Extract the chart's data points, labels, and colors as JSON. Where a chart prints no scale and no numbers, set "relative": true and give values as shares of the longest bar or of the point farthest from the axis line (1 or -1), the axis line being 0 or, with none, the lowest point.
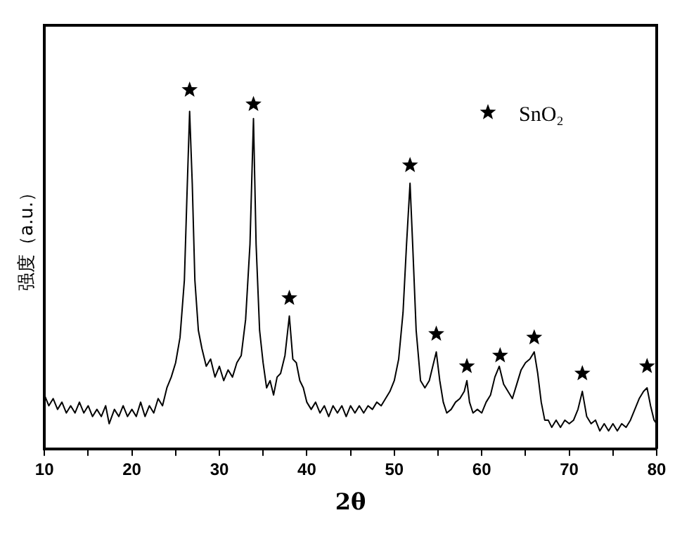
{
  "chart_data": {
    "type": "line",
    "relative": true,
    "xlabel": "2θ",
    "ylabel": "强度（a.u.）",
    "xlim": [
      10,
      80
    ],
    "xticks": [
      10,
      {
        "value": 15,
        "label": null
      },
      20,
      {
        "value": 25,
        "label": null
      },
      30,
      {
        "value": 35,
        "label": null
      },
      40,
      {
        "value": 45,
        "label": null
      },
      50,
      {
        "value": 55,
        "label": null
      },
      60,
      {
        "value": 65,
        "label": null
      },
      70,
      {
        "value": 75,
        "label": null
      },
      80
    ],
    "tick_labels": "x",
    "grid": false,
    "legend": "top right",
    "marker": "none",
    "line_style": "solid",
    "series": [
      {
        "color": "#000000",
        "x": [
          10,
          10.5,
          11,
          11.5,
          12,
          12.5,
          13,
          13.5,
          14,
          14.5,
          15,
          15.5,
          16,
          16.5,
          17,
          17.4,
          18,
          18.5,
          19,
          19.5,
          20,
          20.5,
          21,
          21.5,
          22,
          22.5,
          23,
          23.5,
          24,
          24.5,
          25,
          25.5,
          26,
          26.3,
          26.6,
          26.9,
          27.2,
          27.6,
          28,
          28.5,
          29,
          29.5,
          30,
          30.5,
          31,
          31.5,
          32,
          32.5,
          33,
          33.5,
          33.9,
          34.2,
          34.6,
          35,
          35.4,
          35.8,
          36.2,
          36.6,
          37,
          37.5,
          38,
          38.4,
          38.8,
          39.2,
          39.6,
          40,
          40.5,
          41,
          41.5,
          42,
          42.5,
          43,
          43.5,
          44,
          44.5,
          45,
          45.5,
          46,
          46.5,
          47,
          47.5,
          48,
          48.5,
          49,
          49.5,
          50,
          50.5,
          51,
          51.4,
          51.8,
          52.1,
          52.5,
          53,
          53.5,
          54,
          54.4,
          54.8,
          55.2,
          55.6,
          56,
          56.5,
          57,
          57.5,
          58,
          58.3,
          58.6,
          59,
          59.5,
          60,
          60.5,
          61,
          61.5,
          62,
          62.5,
          63,
          63.5,
          64,
          64.5,
          65,
          65.5,
          66,
          66.4,
          66.8,
          67.2,
          67.6,
          68,
          68.5,
          69,
          69.5,
          70,
          70.5,
          71,
          71.5,
          72,
          72.5,
          73,
          73.5,
          74,
          74.5,
          75,
          75.5,
          76,
          76.5,
          77,
          77.5,
          78,
          78.5,
          78.9,
          79.3,
          79.7,
          80
        ],
        "values": [
          0.15,
          0.12,
          0.14,
          0.11,
          0.13,
          0.1,
          0.12,
          0.1,
          0.13,
          0.1,
          0.12,
          0.09,
          0.11,
          0.09,
          0.12,
          0.07,
          0.11,
          0.09,
          0.12,
          0.09,
          0.11,
          0.09,
          0.13,
          0.09,
          0.12,
          0.1,
          0.14,
          0.12,
          0.17,
          0.2,
          0.24,
          0.31,
          0.47,
          0.71,
          0.94,
          0.74,
          0.47,
          0.33,
          0.28,
          0.23,
          0.25,
          0.2,
          0.23,
          0.19,
          0.22,
          0.2,
          0.24,
          0.26,
          0.36,
          0.57,
          0.92,
          0.57,
          0.33,
          0.24,
          0.17,
          0.19,
          0.15,
          0.2,
          0.21,
          0.26,
          0.37,
          0.25,
          0.24,
          0.19,
          0.17,
          0.13,
          0.11,
          0.13,
          0.1,
          0.12,
          0.09,
          0.12,
          0.1,
          0.12,
          0.09,
          0.12,
          0.1,
          0.12,
          0.1,
          0.12,
          0.11,
          0.13,
          0.12,
          0.14,
          0.16,
          0.19,
          0.25,
          0.38,
          0.57,
          0.74,
          0.57,
          0.33,
          0.19,
          0.17,
          0.19,
          0.23,
          0.27,
          0.19,
          0.13,
          0.1,
          0.11,
          0.13,
          0.14,
          0.16,
          0.19,
          0.13,
          0.1,
          0.11,
          0.1,
          0.13,
          0.15,
          0.2,
          0.23,
          0.18,
          0.16,
          0.14,
          0.18,
          0.22,
          0.24,
          0.25,
          0.27,
          0.21,
          0.13,
          0.08,
          0.08,
          0.06,
          0.08,
          0.06,
          0.08,
          0.07,
          0.08,
          0.11,
          0.16,
          0.09,
          0.07,
          0.08,
          0.05,
          0.07,
          0.05,
          0.07,
          0.05,
          0.07,
          0.06,
          0.08,
          0.11,
          0.14,
          0.16,
          0.17,
          0.12,
          0.08,
          0.07
        ]
      },
      {
        "type": "scatter",
        "name": "SnO₂",
        "color": "#000000",
        "marker": "star",
        "x": [
          26.6,
          33.9,
          38,
          51.8,
          54.8,
          58.3,
          62.1,
          66,
          71.5,
          78.9
        ],
        "values": [
          1,
          0.96,
          0.42,
          0.79,
          0.32,
          0.23,
          0.26,
          0.31,
          0.21,
          0.23
        ]
      }
    ]
  }
}
